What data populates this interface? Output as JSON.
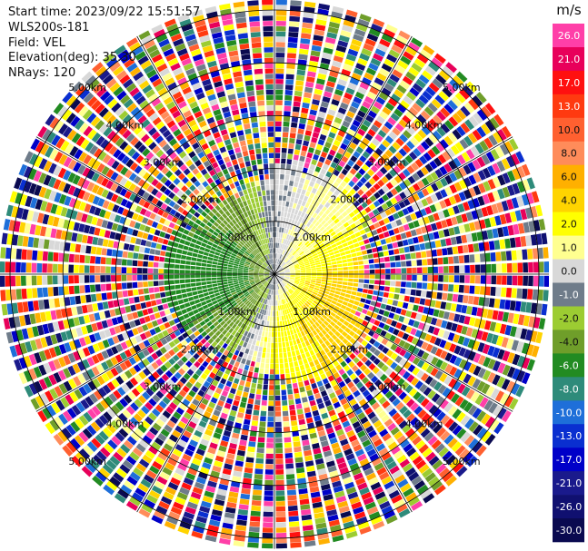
{
  "info": {
    "start_time": "Start time: 2023/09/22 15:51:57",
    "instrument": "WLS200s-181",
    "field": "Field: VEL",
    "elevation": "Elevation(deg): 35.30",
    "nrays": "NRays: 120"
  },
  "chart_data": {
    "type": "heatmap",
    "projection": "polar-ppi",
    "field": "VEL",
    "unit": "m/s",
    "nrays": 120,
    "elevation_deg": 35.3,
    "range_rings_km": [
      1,
      2,
      3,
      4,
      5
    ],
    "range_ring_labels": [
      "1.00km",
      "2.00km",
      "3.00km",
      "4.00km",
      "5.00km"
    ],
    "max_range_km": 5.2,
    "colorbar": {
      "ticks": [
        "26.0",
        "21.0",
        "17.0",
        "13.0",
        "10.0",
        "8.0",
        "6.0",
        "4.0",
        "2.0",
        "1.0",
        "0.0",
        "-1.0",
        "-2.0",
        "-4.0",
        "-6.0",
        "-8.0",
        "-10.0",
        "-13.0",
        "-17.0",
        "-21.0",
        "-26.0",
        "-30.0"
      ],
      "colors": [
        "#ff3fa8",
        "#e8005a",
        "#ff1010",
        "#ff3a10",
        "#ff6030",
        "#ff8c5a",
        "#ffb000",
        "#ffd400",
        "#ffff00",
        "#ffff90",
        "#d8d8d8",
        "#6f7c8a",
        "#9ccc32",
        "#6f9e2a",
        "#228b22",
        "#2e8b7a",
        "#1e6fd9",
        "#0a2fd0",
        "#0000c8",
        "#1a1a8c",
        "#101070",
        "#0a0a50"
      ]
    },
    "near_field_pattern": {
      "center_value_m_s": 0.0,
      "west_value_m_s": -5.0,
      "east_value_m_s": 2.0,
      "southeast_value_m_s": 5.0,
      "clean_range_km": 1.9
    }
  }
}
